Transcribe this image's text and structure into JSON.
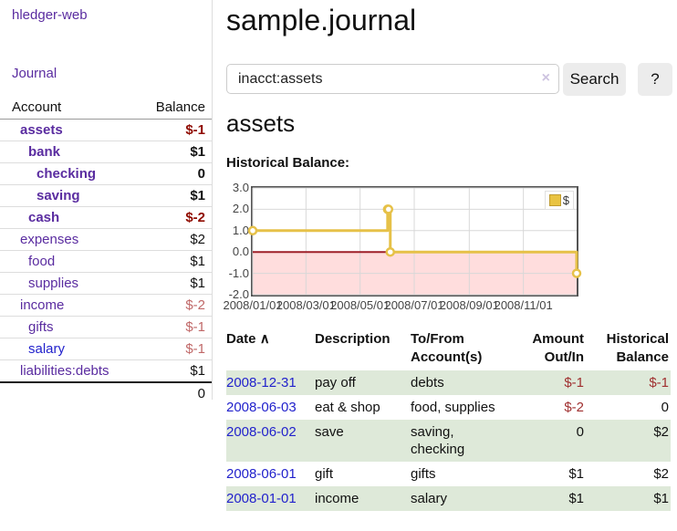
{
  "app": {
    "brand": "hledger-web",
    "nav_journal": "Journal"
  },
  "sidebar": {
    "headers": {
      "account": "Account",
      "balance": "Balance"
    },
    "accounts": [
      {
        "name": "assets",
        "depth": 1,
        "bold": true,
        "balance": "$-1",
        "balance_style": "neg-strong",
        "link": "purple"
      },
      {
        "name": "bank",
        "depth": 2,
        "bold": true,
        "balance": "$1",
        "balance_style": "pos",
        "link": "purple"
      },
      {
        "name": "checking",
        "depth": 3,
        "bold": true,
        "balance": "0",
        "balance_style": "pos",
        "link": "purple"
      },
      {
        "name": "saving",
        "depth": 3,
        "bold": true,
        "balance": "$1",
        "balance_style": "pos",
        "link": "purple"
      },
      {
        "name": "cash",
        "depth": 2,
        "bold": true,
        "balance": "$-2",
        "balance_style": "neg-strong",
        "link": "purple"
      },
      {
        "name": "expenses",
        "depth": 1,
        "bold": false,
        "balance": "$2",
        "balance_style": "pos",
        "link": "purple"
      },
      {
        "name": "food",
        "depth": 2,
        "bold": false,
        "balance": "$1",
        "balance_style": "pos",
        "link": "purple"
      },
      {
        "name": "supplies",
        "depth": 2,
        "bold": false,
        "balance": "$1",
        "balance_style": "pos",
        "link": "purple"
      },
      {
        "name": "income",
        "depth": 1,
        "bold": false,
        "balance": "$-2",
        "balance_style": "neg",
        "link": "purple"
      },
      {
        "name": "gifts",
        "depth": 2,
        "bold": false,
        "balance": "$-1",
        "balance_style": "neg",
        "link": "purple"
      },
      {
        "name": "salary",
        "depth": 2,
        "bold": false,
        "balance": "$-1",
        "balance_style": "neg",
        "link": "blue"
      },
      {
        "name": "liabilities:debts",
        "depth": 1,
        "bold": false,
        "balance": "$1",
        "balance_style": "pos",
        "link": "purple"
      }
    ],
    "total": "0"
  },
  "header": {
    "title": "sample.journal"
  },
  "search": {
    "value": "inacct:assets",
    "clear_icon": "×",
    "search_button": "Search",
    "help_button": "?"
  },
  "account_page": {
    "heading": "assets",
    "chart_label": "Historical Balance:"
  },
  "chart_data": {
    "type": "line",
    "title": "Historical Balance",
    "step": true,
    "series": [
      {
        "name": "$",
        "color": "#e6c148",
        "points": [
          {
            "date": "2008-01-01",
            "day": 0,
            "value": 1
          },
          {
            "date": "2008-06-01",
            "day": 152,
            "value": 2
          },
          {
            "date": "2008-06-02",
            "day": 153,
            "value": 2
          },
          {
            "date": "2008-06-03",
            "day": 155,
            "value": 0
          },
          {
            "date": "2008-12-31",
            "day": 365,
            "value": -1
          }
        ]
      }
    ],
    "x_axis": {
      "range_days": [
        0,
        365
      ],
      "ticks": [
        {
          "label": "2008/01/01",
          "day": 0
        },
        {
          "label": "2008/03/01",
          "day": 60
        },
        {
          "label": "2008/05/01",
          "day": 121
        },
        {
          "label": "2008/07/01",
          "day": 182
        },
        {
          "label": "2008/09/01",
          "day": 244
        },
        {
          "label": "2008/11/01",
          "day": 305
        }
      ]
    },
    "y_axis": {
      "range": [
        -2,
        3
      ],
      "ticks": [
        {
          "label": "3.0",
          "value": 3
        },
        {
          "label": "2.0",
          "value": 2
        },
        {
          "label": "1.0",
          "value": 1
        },
        {
          "label": "0.0",
          "value": 0
        },
        {
          "label": "-1.0",
          "value": -1
        },
        {
          "label": "-2.0",
          "value": -2
        }
      ]
    },
    "grid": true,
    "grid_color": "#d8d8d8",
    "negative_region_fill": "#ffdddd",
    "zero_line_color": "#9e1f28",
    "legend": {
      "position": "top-right",
      "items": [
        {
          "label": "$",
          "color": "#e9c341"
        }
      ]
    }
  },
  "register": {
    "headers": {
      "date": "Date",
      "sort_arrow": "∧",
      "description": "Description",
      "accounts_line1": "To/From",
      "accounts_line2": "Account(s)",
      "amount_line1": "Amount",
      "amount_line2": "Out/In",
      "balance_line1": "Historical",
      "balance_line2": "Balance"
    },
    "rows": [
      {
        "date": "2008-12-31",
        "description": "pay off",
        "accounts": "debts",
        "amount": "$-1",
        "amount_neg": true,
        "balance": "$-1",
        "balance_neg": true,
        "shaded": true
      },
      {
        "date": "2008-06-03",
        "description": "eat & shop",
        "accounts": "food, supplies",
        "amount": "$-2",
        "amount_neg": true,
        "balance": "0",
        "balance_neg": false,
        "shaded": false
      },
      {
        "date": "2008-06-02",
        "description": "save",
        "accounts": "saving, checking",
        "amount": "0",
        "amount_neg": false,
        "balance": "$2",
        "balance_neg": false,
        "shaded": true
      },
      {
        "date": "2008-06-01",
        "description": "gift",
        "accounts": "gifts",
        "amount": "$1",
        "amount_neg": false,
        "balance": "$2",
        "balance_neg": false,
        "shaded": false
      },
      {
        "date": "2008-01-01",
        "description": "income",
        "accounts": "salary",
        "amount": "$1",
        "amount_neg": false,
        "balance": "$1",
        "balance_neg": false,
        "shaded": true
      }
    ]
  }
}
